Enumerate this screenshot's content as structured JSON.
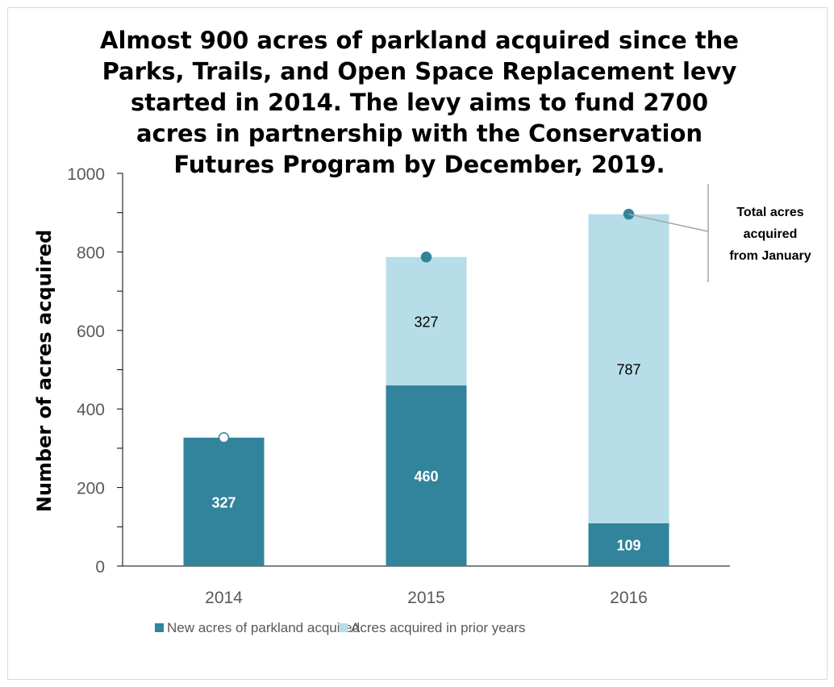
{
  "chart_data": {
    "type": "bar",
    "stacked": true,
    "title_lines": [
      "Almost 900 acres of parkland acquired since the",
      "Parks, Trails, and Open Space Replacement levy",
      "started in 2014.  The levy aims to fund 2700",
      "acres in partnership with the Conservation",
      "Futures Program by December, 2019."
    ],
    "ylabel": "Number of acres acquired",
    "xlabel": "",
    "ylim": [
      0,
      1000
    ],
    "yticks": [
      0,
      200,
      400,
      600,
      800,
      1000
    ],
    "categories": [
      "2014",
      "2015",
      "2016"
    ],
    "series": [
      {
        "name": "New acres of parkland acquired",
        "values": [
          327,
          460,
          109
        ],
        "color": "#31849b"
      },
      {
        "name": "Acres acquired in prior years",
        "values": [
          0,
          327,
          787
        ],
        "color": "#b7dde8"
      }
    ],
    "total_markers": [
      327,
      787,
      896
    ],
    "annotation": [
      "Total acres",
      "acquired",
      "from January"
    ],
    "legend_position": "bottom",
    "grid": false
  }
}
